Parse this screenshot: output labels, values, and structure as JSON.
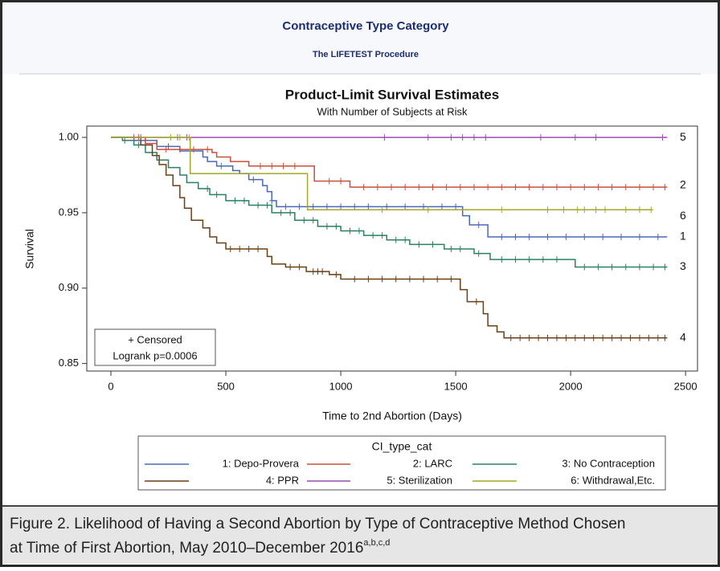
{
  "header": {
    "title": "Contraceptive Type Category",
    "subtitle": "The LIFETEST Procedure"
  },
  "chart_data": {
    "type": "step",
    "title": "Product-Limit Survival Estimates",
    "subtitle": "With Number of Subjects at Risk",
    "x_label": "Time to 2nd Abortion (Days)",
    "y_label": "Survival",
    "xlim": [
      -105,
      2552
    ],
    "ylim": [
      0.845,
      1.0075
    ],
    "xticks": [
      0,
      500,
      1000,
      1500,
      2000,
      2500
    ],
    "yticks": [
      {
        "value": 0.85,
        "label": "0.85"
      },
      {
        "value": 0.9,
        "label": "0.90"
      },
      {
        "value": 0.95,
        "label": "0.95"
      },
      {
        "value": 1,
        "label": "1.00"
      }
    ],
    "legend_title": "CI_type_cat",
    "censor_mark": "+",
    "inset": [
      "+ Censored",
      "Logrank p=0.0006"
    ],
    "series": [
      {
        "name": "1: Depo-Provera",
        "end_label": "1",
        "color": "#4a68b8",
        "x": [
          0,
          100,
          200,
          300,
          400,
          420,
          460,
          530,
          560,
          600,
          660,
          680,
          700,
          720,
          1530,
          1560,
          1640,
          2420
        ],
        "values": [
          1,
          0.998,
          0.994,
          0.991,
          0.987,
          0.984,
          0.981,
          0.978,
          0.976,
          0.972,
          0.968,
          0.964,
          0.958,
          0.954,
          0.948,
          0.942,
          0.934,
          0.934
        ],
        "censored": [
          150,
          250,
          480,
          620,
          700,
          760,
          820,
          880,
          940,
          1000,
          1060,
          1120,
          1200,
          1280,
          1360,
          1440,
          1500,
          1600,
          1700,
          1760,
          1820,
          1900,
          1980,
          2060,
          2140,
          2220,
          2300,
          2380
        ]
      },
      {
        "name": "2: LARC",
        "end_label": "2",
        "color": "#c8503a",
        "x": [
          0,
          150,
          200,
          440,
          460,
          520,
          600,
          885,
          1040,
          2420
        ],
        "values": [
          1,
          0.996,
          0.992,
          0.99,
          0.987,
          0.984,
          0.981,
          0.971,
          0.967,
          0.967
        ],
        "censored": [
          120,
          240,
          300,
          360,
          420,
          650,
          700,
          750,
          800,
          950,
          1000,
          1100,
          1160,
          1220,
          1280,
          1340,
          1400,
          1460,
          1520,
          1580,
          1640,
          1700,
          1760,
          1820,
          1880,
          1940,
          2000,
          2060,
          2120,
          2180,
          2240,
          2300,
          2360,
          2410
        ]
      },
      {
        "name": "3: No Contraception",
        "end_label": "3",
        "color": "#2a8064",
        "x": [
          0,
          50,
          100,
          150,
          200,
          250,
          300,
          330,
          380,
          430,
          500,
          600,
          700,
          800,
          900,
          1000,
          1100,
          1200,
          1300,
          1450,
          1580,
          1650,
          2020,
          2420
        ],
        "values": [
          1,
          0.998,
          0.995,
          0.99,
          0.985,
          0.98,
          0.975,
          0.97,
          0.966,
          0.962,
          0.958,
          0.955,
          0.95,
          0.945,
          0.941,
          0.938,
          0.935,
          0.932,
          0.929,
          0.926,
          0.923,
          0.919,
          0.914,
          0.914
        ],
        "censored": [
          60,
          120,
          420,
          460,
          540,
          580,
          640,
          680,
          740,
          780,
          840,
          880,
          940,
          980,
          1040,
          1080,
          1140,
          1180,
          1240,
          1280,
          1340,
          1400,
          1480,
          1520,
          1600,
          1700,
          1760,
          1820,
          1880,
          1940,
          2060,
          2120,
          2180,
          2240,
          2300,
          2360,
          2410
        ]
      },
      {
        "name": "4: PPR",
        "end_label": "4",
        "color": "#6b3f14",
        "x": [
          0,
          130,
          180,
          210,
          240,
          270,
          300,
          320,
          350,
          400,
          430,
          460,
          500,
          680,
          700,
          760,
          850,
          950,
          1000,
          1520,
          1550,
          1620,
          1640,
          1680,
          1710,
          2420
        ],
        "values": [
          1,
          0.995,
          0.988,
          0.982,
          0.975,
          0.968,
          0.96,
          0.953,
          0.945,
          0.94,
          0.934,
          0.93,
          0.926,
          0.921,
          0.916,
          0.914,
          0.911,
          0.909,
          0.906,
          0.899,
          0.891,
          0.883,
          0.875,
          0.871,
          0.867,
          0.867
        ],
        "censored": [
          520,
          560,
          600,
          640,
          780,
          820,
          880,
          900,
          920,
          980,
          1060,
          1120,
          1180,
          1240,
          1300,
          1360,
          1420,
          1480,
          1590,
          1740,
          1780,
          1820,
          1860,
          1900,
          1940,
          1980,
          2020,
          2060,
          2100,
          2140,
          2180,
          2220,
          2260,
          2300,
          2340,
          2380,
          2410
        ]
      },
      {
        "name": "5: Sterilization",
        "end_label": "5",
        "color": "#9a4fb0",
        "x": [
          0,
          2420
        ],
        "values": [
          1,
          1
        ],
        "censored": [
          100,
          130,
          290,
          330,
          1190,
          1380,
          1480,
          1530,
          1580,
          1630,
          1870,
          2020,
          2110,
          2400
        ]
      },
      {
        "name": "6: Withdrawal,Etc.",
        "end_label": "6",
        "color": "#a3a82a",
        "x": [
          0,
          345,
          855,
          2357
        ],
        "values": [
          1,
          0.976,
          0.952,
          0.952
        ],
        "censored": [
          260,
          300,
          340,
          1180,
          1380,
          1700,
          1900,
          1970,
          2030,
          2060,
          2110,
          2150,
          2240,
          2300,
          2350
        ]
      }
    ]
  },
  "caption": {
    "lines": [
      "Figure 2. Likelihood of Having a Second Abortion by Type of Contraceptive Method Chosen",
      "at Time of First Abortion, May 2010–December 2016"
    ],
    "superscript": "a,b,c,d"
  }
}
